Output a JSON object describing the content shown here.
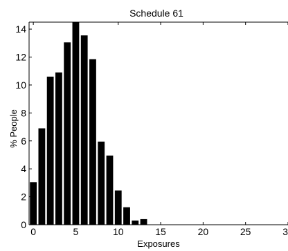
{
  "chart_data": {
    "type": "bar",
    "title": "Schedule 61",
    "xlabel": "Exposures",
    "ylabel": "% People",
    "xlim": [
      -0.5,
      30
    ],
    "ylim": [
      0,
      14.5
    ],
    "xticks": [
      0,
      5,
      10,
      15,
      20,
      25,
      30
    ],
    "yticks": [
      0,
      2,
      4,
      6,
      8,
      10,
      12,
      14
    ],
    "xtick_labels": [
      "0",
      "5",
      "10",
      "15",
      "20",
      "25",
      "30"
    ],
    "ytick_labels": [
      "0",
      "2",
      "4",
      "6",
      "8",
      "10",
      "12",
      "14"
    ],
    "grid": false,
    "bar_color": "#000000",
    "x": [
      0,
      1,
      2,
      3,
      4,
      5,
      6,
      7,
      8,
      9,
      10,
      11,
      12,
      13
    ],
    "values": [
      3.05,
      6.9,
      10.6,
      10.9,
      13.05,
      14.5,
      13.55,
      11.85,
      5.95,
      4.95,
      2.45,
      1.25,
      0.3,
      0.4
    ]
  }
}
